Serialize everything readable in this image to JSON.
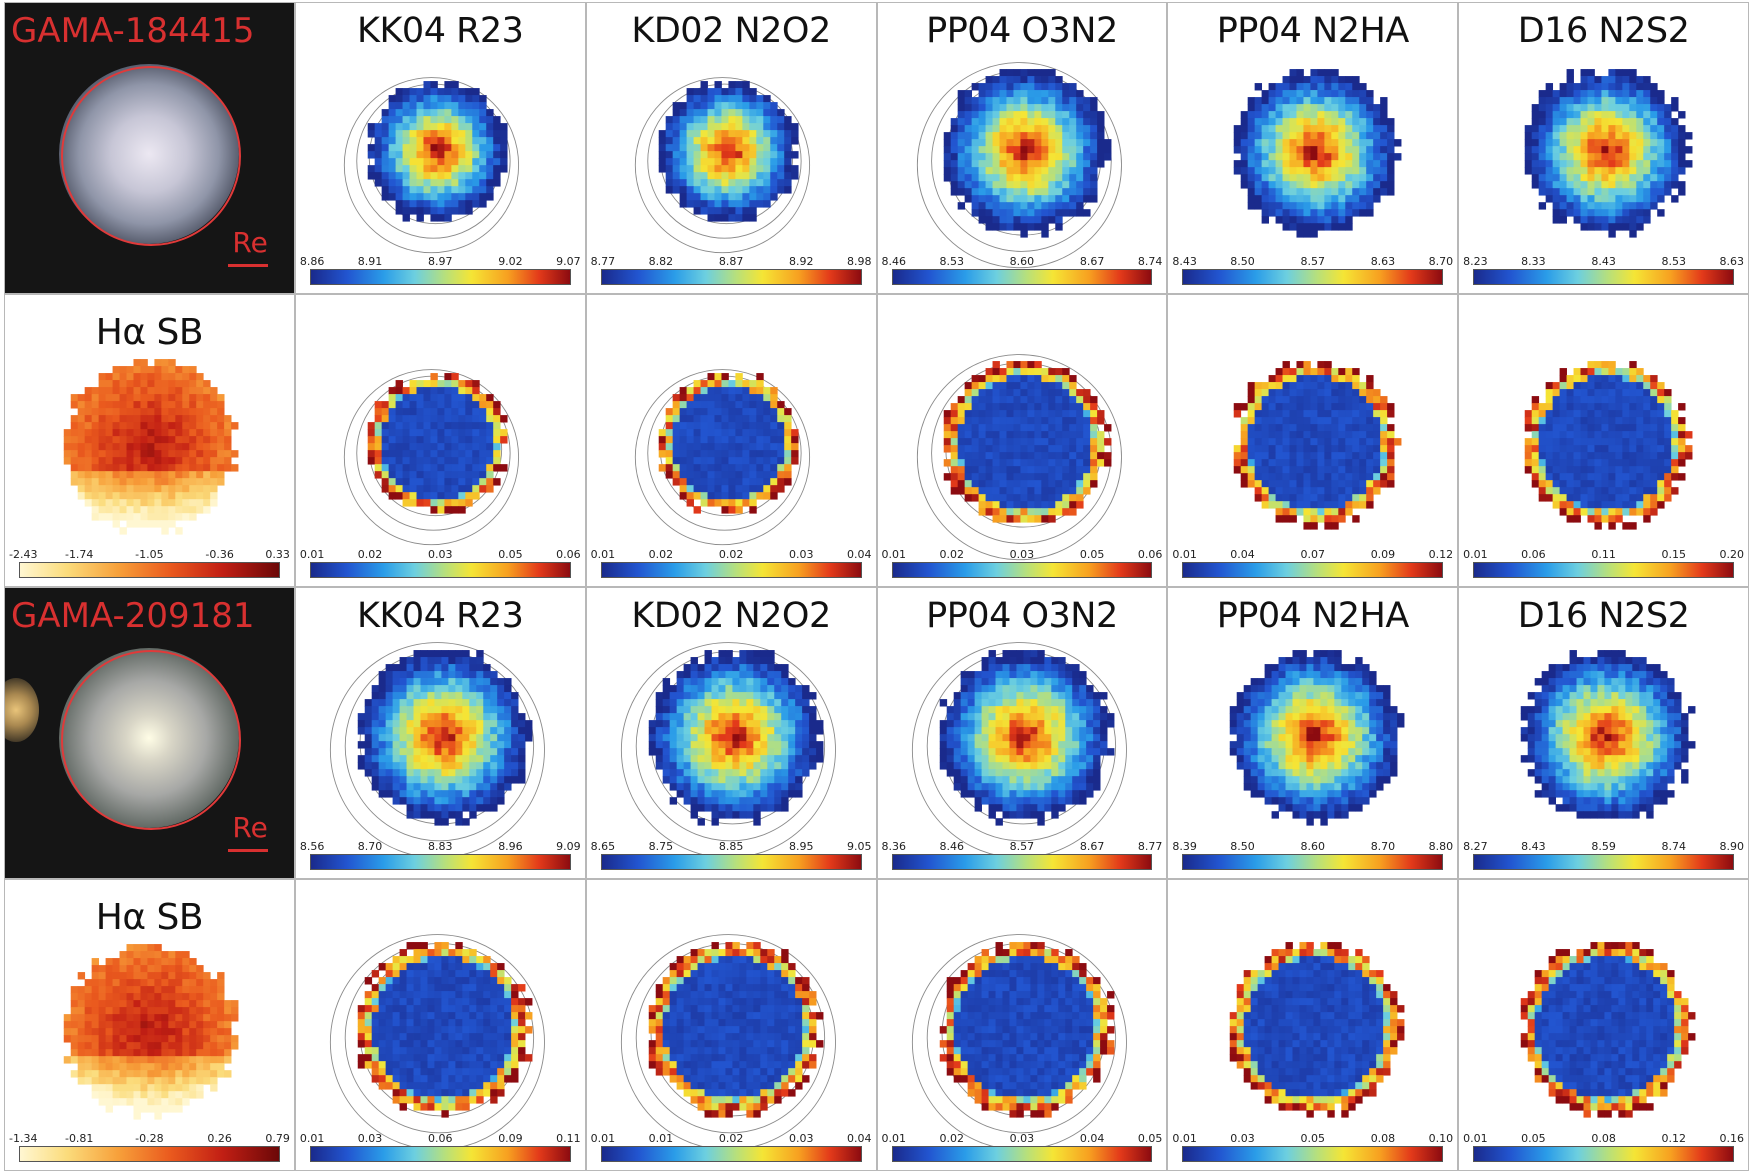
{
  "figure": {
    "rows": [
      {
        "type": "metallicity",
        "galaxy_label": "GAMA-184415",
        "re_label": "Re",
        "panels": [
          {
            "title": "KK04 R23",
            "ticks": [
              "8.86",
              "8.91",
              "8.97",
              "9.02",
              "9.07"
            ]
          },
          {
            "title": "KD02 N2O2",
            "ticks": [
              "8.77",
              "8.82",
              "8.87",
              "8.92",
              "8.98"
            ]
          },
          {
            "title": "PP04 O3N2",
            "ticks": [
              "8.46",
              "8.53",
              "8.60",
              "8.67",
              "8.74"
            ]
          },
          {
            "title": "PP04 N2HA",
            "ticks": [
              "8.43",
              "8.50",
              "8.57",
              "8.63",
              "8.70"
            ]
          },
          {
            "title": "D16 N2S2",
            "ticks": [
              "8.23",
              "8.33",
              "8.43",
              "8.53",
              "8.63"
            ]
          }
        ]
      },
      {
        "type": "error",
        "first_panel": {
          "title": "Hα SB",
          "ticks": [
            "-2.43",
            "-1.74",
            "-1.05",
            "-0.36",
            "0.33"
          ]
        },
        "panels": [
          {
            "ticks": [
              "0.01",
              "0.02",
              "0.03",
              "0.05",
              "0.06"
            ]
          },
          {
            "ticks": [
              "0.01",
              "0.02",
              "0.02",
              "0.03",
              "0.04"
            ]
          },
          {
            "ticks": [
              "0.01",
              "0.02",
              "0.03",
              "0.05",
              "0.06"
            ]
          },
          {
            "ticks": [
              "0.01",
              "0.04",
              "0.07",
              "0.09",
              "0.12"
            ]
          },
          {
            "ticks": [
              "0.01",
              "0.06",
              "0.11",
              "0.15",
              "0.20"
            ]
          }
        ]
      },
      {
        "type": "metallicity",
        "galaxy_label": "GAMA-209181",
        "re_label": "Re",
        "panels": [
          {
            "title": "KK04 R23",
            "ticks": [
              "8.56",
              "8.70",
              "8.83",
              "8.96",
              "9.09"
            ]
          },
          {
            "title": "KD02 N2O2",
            "ticks": [
              "8.65",
              "8.75",
              "8.85",
              "8.95",
              "9.05"
            ]
          },
          {
            "title": "PP04 O3N2",
            "ticks": [
              "8.36",
              "8.46",
              "8.57",
              "8.67",
              "8.77"
            ]
          },
          {
            "title": "PP04 N2HA",
            "ticks": [
              "8.39",
              "8.50",
              "8.60",
              "8.70",
              "8.80"
            ]
          },
          {
            "title": "D16 N2S2",
            "ticks": [
              "8.27",
              "8.43",
              "8.59",
              "8.74",
              "8.90"
            ]
          }
        ]
      },
      {
        "type": "error",
        "first_panel": {
          "title": "Hα SB",
          "ticks": [
            "-1.34",
            "-0.81",
            "-0.28",
            "0.26",
            "0.79"
          ]
        },
        "panels": [
          {
            "ticks": [
              "0.01",
              "0.03",
              "0.06",
              "0.09",
              "0.11"
            ]
          },
          {
            "ticks": [
              "0.01",
              "0.01",
              "0.02",
              "0.03",
              "0.04"
            ]
          },
          {
            "ticks": [
              "0.01",
              "0.02",
              "0.03",
              "0.04",
              "0.05"
            ]
          },
          {
            "ticks": [
              "0.01",
              "0.03",
              "0.05",
              "0.08",
              "0.10"
            ]
          },
          {
            "ticks": [
              "0.01",
              "0.05",
              "0.08",
              "0.12",
              "0.16"
            ]
          }
        ]
      }
    ],
    "colors": {
      "galaxy_label": "#d83030",
      "circle": "#e03a3a",
      "colormap_metallicity": "jet",
      "colormap_ha": "heat"
    }
  }
}
